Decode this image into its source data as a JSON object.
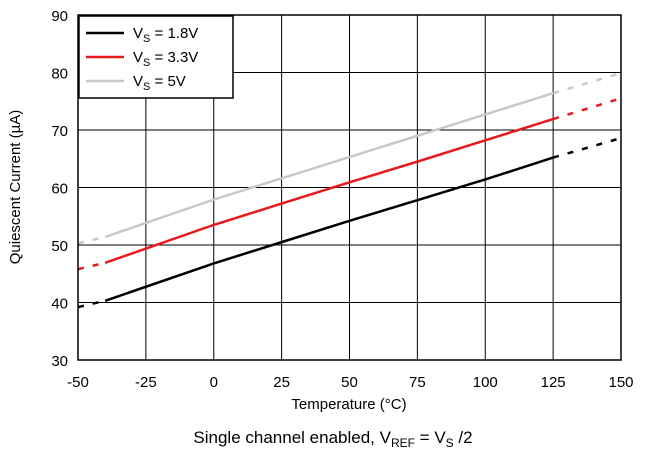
{
  "chart_data": {
    "type": "line",
    "title": "",
    "xlabel": "Temperature (°C)",
    "ylabel": "Quiescent Current (µA)",
    "caption": {
      "prefix": "Single channel enabled, V",
      "ref_sub": "REF",
      "middle": " = V",
      "s_sub": "S",
      "suffix": " /2"
    },
    "xlim": [
      -50,
      150
    ],
    "ylim": [
      30,
      90
    ],
    "x_ticks": [
      -50,
      -25,
      0,
      25,
      50,
      75,
      100,
      125,
      150
    ],
    "y_ticks": [
      30,
      40,
      50,
      60,
      70,
      80,
      90
    ],
    "grid": true,
    "legend_position": "top-left",
    "solid_range": [
      -40,
      125
    ],
    "dashed_ranges": [
      [
        -50,
        -40
      ],
      [
        125,
        150
      ]
    ],
    "series": [
      {
        "legend_main": "V",
        "legend_sub": "S",
        "legend_value": " = 1.8V",
        "color": "#000000",
        "x": [
          -50,
          -40,
          0,
          25,
          50,
          75,
          100,
          125,
          150
        ],
        "y": [
          39.2,
          40.3,
          46.8,
          50.5,
          54.2,
          57.8,
          61.4,
          65.2,
          68.6
        ]
      },
      {
        "legend_main": "V",
        "legend_sub": "S",
        "legend_value": " = 3.3V",
        "color": "#e8191c",
        "x": [
          -50,
          -40,
          0,
          25,
          50,
          75,
          100,
          125,
          150
        ],
        "y": [
          45.8,
          46.9,
          53.5,
          57.2,
          60.9,
          64.5,
          68.2,
          71.9,
          75.5
        ]
      },
      {
        "legend_main": "V",
        "legend_sub": "S",
        "legend_value": " = 5V",
        "color": "#c8c8c8",
        "x": [
          -50,
          -40,
          0,
          25,
          50,
          75,
          100,
          125,
          150
        ],
        "y": [
          50.3,
          51.4,
          57.9,
          61.6,
          65.3,
          69.0,
          72.7,
          76.4,
          79.9
        ]
      }
    ]
  }
}
